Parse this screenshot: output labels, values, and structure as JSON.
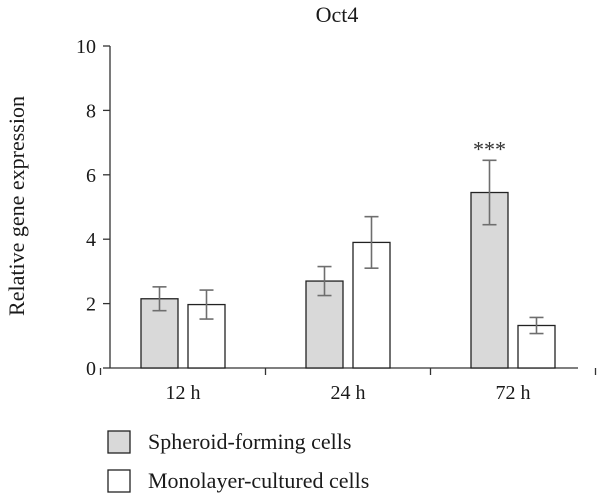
{
  "chart_data": {
    "type": "bar",
    "title": "Oct4",
    "ylabel": "Relative gene expression",
    "xlabel": "",
    "categories": [
      "12 h",
      "24 h",
      "72 h"
    ],
    "ylim": [
      0,
      10
    ],
    "yticks": [
      "0",
      "2",
      "4",
      "6",
      "8",
      "10"
    ],
    "series": [
      {
        "name": "Spheroid-forming cells",
        "color": "#d9d9d9",
        "values": [
          2.15,
          2.7,
          5.45
        ],
        "error": [
          0.37,
          0.45,
          1.0
        ]
      },
      {
        "name": "Monolayer-cultured cells",
        "color": "#ffffff",
        "values": [
          1.97,
          3.9,
          1.32
        ],
        "error": [
          0.45,
          0.8,
          0.25
        ]
      }
    ],
    "annotations": [
      {
        "category": "72 h",
        "series": 0,
        "text": "***"
      }
    ],
    "grid": false,
    "legend_position": "bottom-left"
  }
}
